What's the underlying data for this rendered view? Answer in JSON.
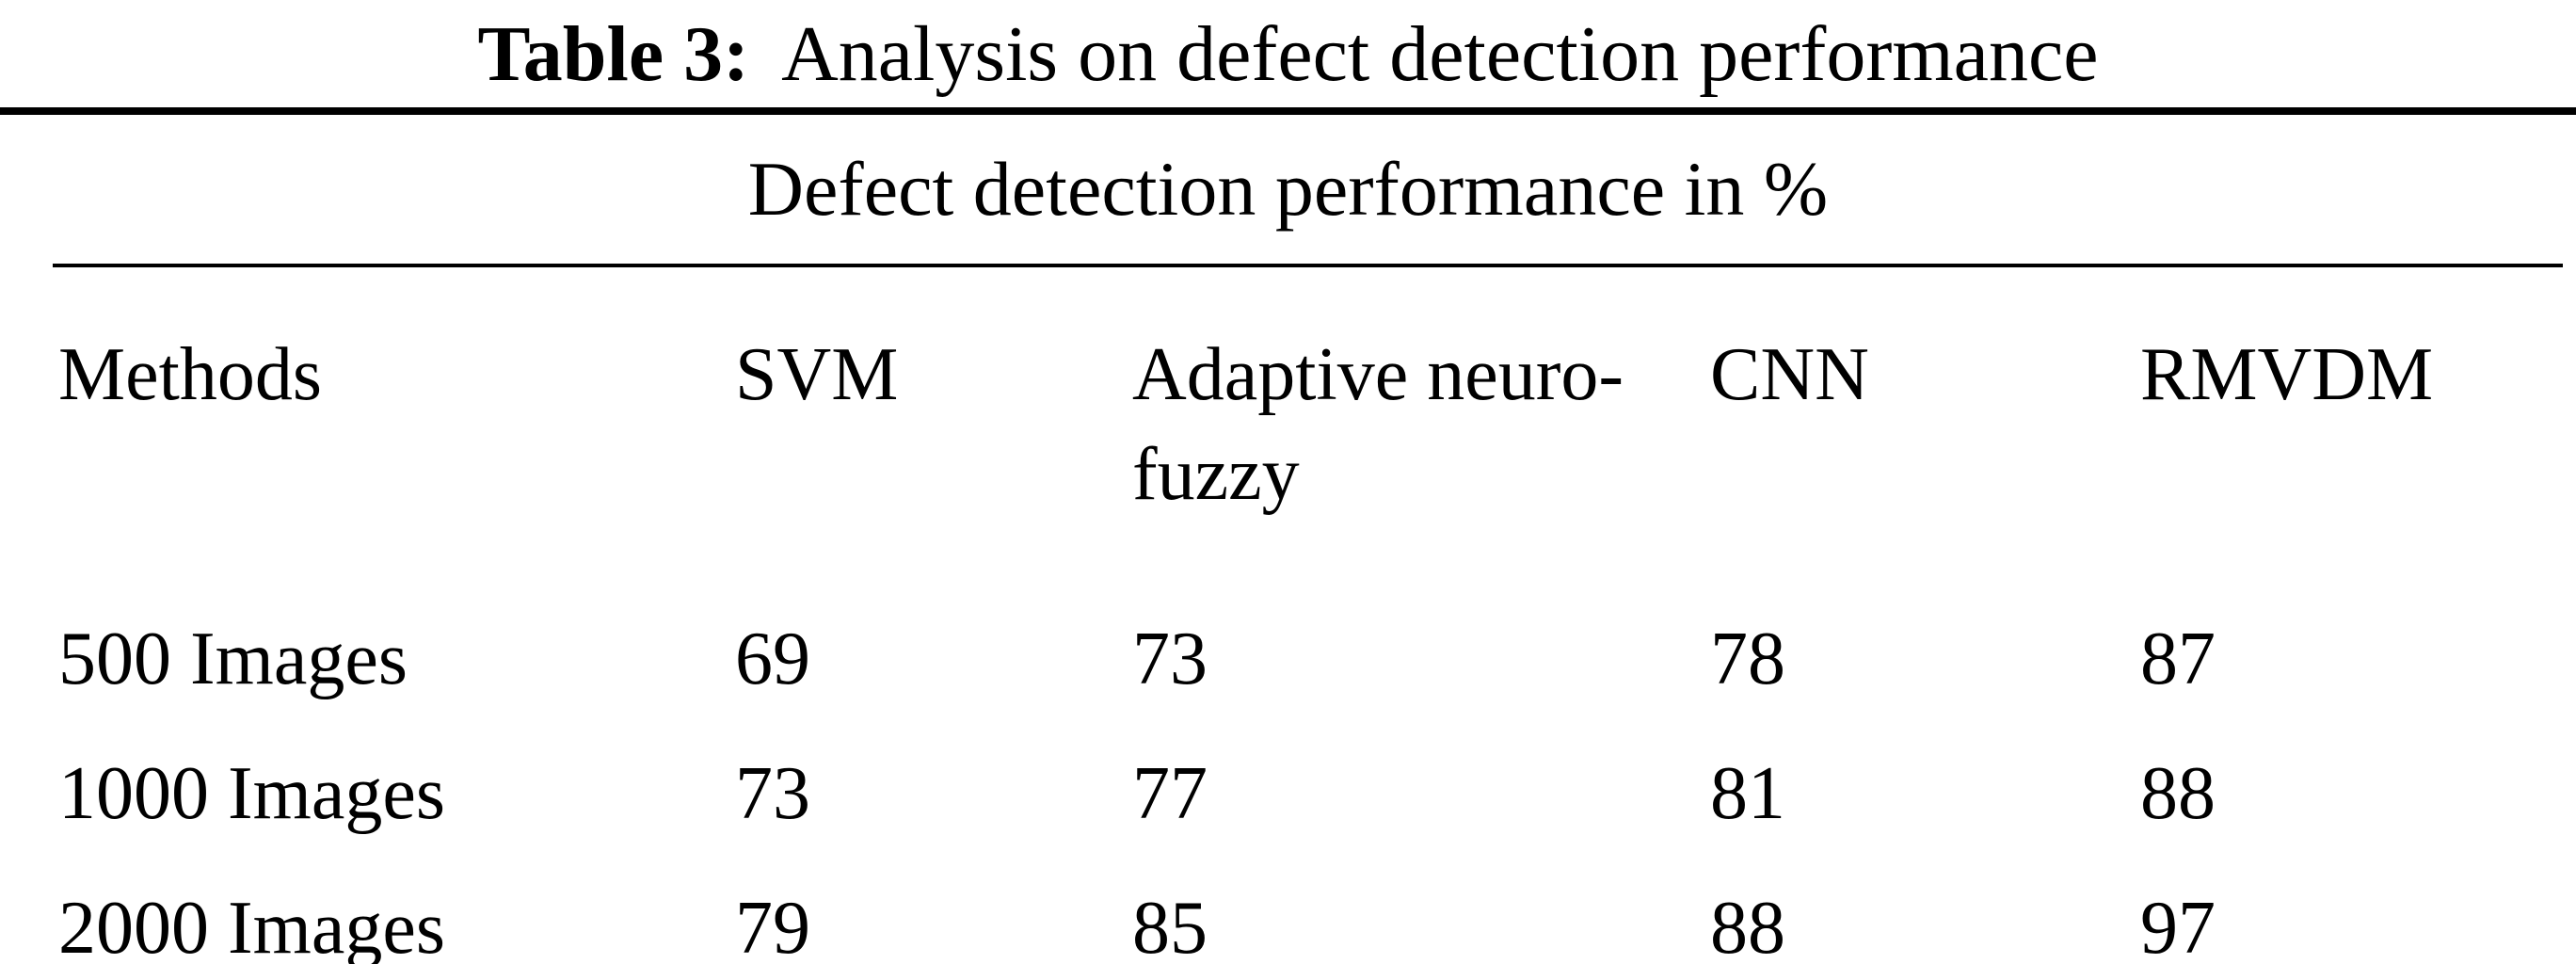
{
  "caption": {
    "label": "Table 3:",
    "text": "Analysis on defect detection performance"
  },
  "table": {
    "span_header": "Defect detection performance in %",
    "columns": [
      "Methods",
      "SVM",
      "Adaptive neuro-fuzzy",
      "CNN",
      "RMVDM"
    ],
    "rows": [
      {
        "method": "500 Images",
        "values": [
          "69",
          "73",
          "78",
          "87"
        ]
      },
      {
        "method": "1000 Images",
        "values": [
          "73",
          "77",
          "81",
          "88"
        ]
      },
      {
        "method": "2000 Images",
        "values": [
          "79",
          "85",
          "88",
          "97"
        ]
      }
    ]
  },
  "colors": {
    "text": "#000000",
    "background": "#ffffff",
    "rule": "#000000"
  }
}
